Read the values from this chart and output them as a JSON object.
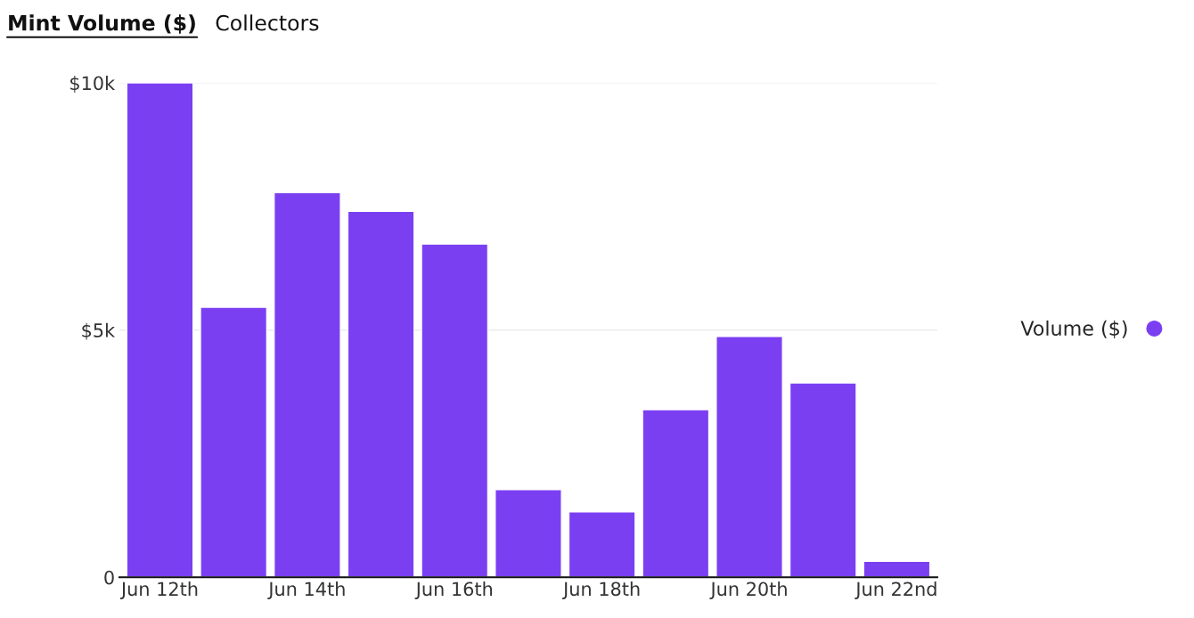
{
  "chart_data": {
    "type": "bar",
    "title": "Mint Volume ($)",
    "subtitle": "Collectors",
    "categories": [
      "Jun 12th",
      null,
      "Jun 14th",
      null,
      "Jun 16th",
      null,
      "Jun 18th",
      null,
      "Jun 20th",
      null,
      "Jun 22nd"
    ],
    "series": [
      {
        "name": "Volume ($)",
        "color": "#7b3ff2",
        "values": [
          10000,
          5460,
          7780,
          7400,
          6740,
          1770,
          1320,
          3390,
          4870,
          3930,
          320
        ]
      }
    ],
    "ylim": [
      0,
      10000
    ],
    "yticks": [
      {
        "value": 0,
        "label": "0"
      },
      {
        "value": 5000,
        "label": "$5k"
      },
      {
        "value": 10000,
        "label": "$10k"
      }
    ],
    "grid": "y",
    "legend": "right",
    "marker": "circle"
  }
}
